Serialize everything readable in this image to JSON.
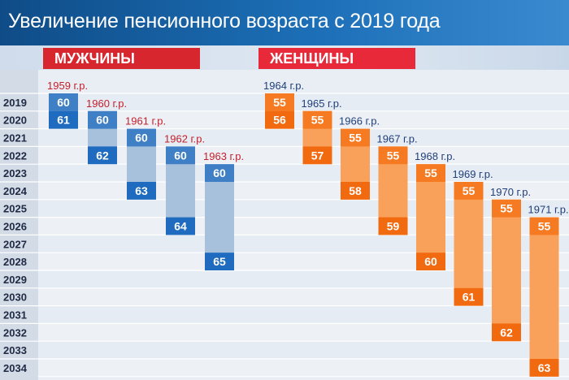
{
  "title": "Увеличение пенсионного возраста с 2019 года",
  "colors": {
    "men_start": "#3f7fc6",
    "men_end": "#1f6bc0",
    "men_bar": "#a7c1dc",
    "women_start": "#f57a21",
    "women_end": "#f26a10",
    "women_bar": "#f9a15a",
    "men_cohort_text": "#c4202b",
    "women_cohort_text": "#1f3f7a"
  },
  "chart_data": {
    "type": "bar",
    "years": [
      "2019",
      "2020",
      "2021",
      "2022",
      "2023",
      "2024",
      "2025",
      "2026",
      "2027",
      "2028",
      "2029",
      "2030",
      "2031",
      "2032",
      "2033",
      "2034"
    ],
    "groups": [
      {
        "name": "МУЖЧИНЫ",
        "cohorts": [
          {
            "label": "1959 г.р.",
            "start_year": "2019",
            "start_age": "60",
            "end_year": "2020",
            "end_age": "61"
          },
          {
            "label": "1960 г.р.",
            "start_year": "2020",
            "start_age": "60",
            "end_year": "2022",
            "end_age": "62"
          },
          {
            "label": "1961 г.р.",
            "start_year": "2021",
            "start_age": "60",
            "end_year": "2024",
            "end_age": "63"
          },
          {
            "label": "1962 г.р.",
            "start_year": "2022",
            "start_age": "60",
            "end_year": "2026",
            "end_age": "64"
          },
          {
            "label": "1963 г.р.",
            "start_year": "2023",
            "start_age": "60",
            "end_year": "2028",
            "end_age": "65"
          }
        ]
      },
      {
        "name": "ЖЕНЩИНЫ",
        "cohorts": [
          {
            "label": "1964 г.р.",
            "start_year": "2019",
            "start_age": "55",
            "end_year": "2020",
            "end_age": "56"
          },
          {
            "label": "1965 г.р.",
            "start_year": "2020",
            "start_age": "55",
            "end_year": "2022",
            "end_age": "57"
          },
          {
            "label": "1966 г.р.",
            "start_year": "2021",
            "start_age": "55",
            "end_year": "2024",
            "end_age": "58"
          },
          {
            "label": "1967 г.р.",
            "start_year": "2022",
            "start_age": "55",
            "end_year": "2026",
            "end_age": "59"
          },
          {
            "label": "1968 г.р.",
            "start_year": "2023",
            "start_age": "55",
            "end_year": "2028",
            "end_age": "60"
          },
          {
            "label": "1969 г.р.",
            "start_year": "2024",
            "start_age": "55",
            "end_year": "2030",
            "end_age": "61"
          },
          {
            "label": "1970 г.р.",
            "start_year": "2025",
            "start_age": "55",
            "end_year": "2032",
            "end_age": "62"
          },
          {
            "label": "1971 г.р.",
            "start_year": "2026",
            "start_age": "55",
            "end_year": "2034",
            "end_age": "63"
          }
        ]
      }
    ]
  }
}
